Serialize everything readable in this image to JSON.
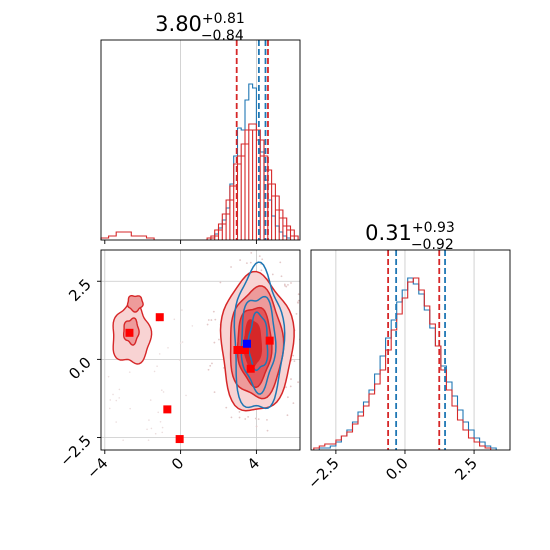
{
  "chart_data": [
    {
      "type": "histogram",
      "panel": "top-left",
      "title": {
        "base": "3.80",
        "sup": "+0.81",
        "sub": "−0.84"
      },
      "xlim": [
        -4.2,
        6.3
      ],
      "ylim": [
        0,
        1.0
      ],
      "grid": true,
      "quantile_lines": [
        {
          "series": "red",
          "x": [
            2.96,
            4.61
          ]
        },
        {
          "series": "blue",
          "x": [
            4.13,
            4.48
          ]
        }
      ],
      "series": [
        {
          "color": "#1f77b4",
          "bins": [
            [
              1.7,
              0.01
            ],
            [
              1.9,
              0.03
            ],
            [
              2.1,
              0.06
            ],
            [
              2.3,
              0.1
            ],
            [
              2.5,
              0.16
            ],
            [
              2.7,
              0.28
            ],
            [
              2.9,
              0.42
            ],
            [
              3.1,
              0.56
            ],
            [
              3.3,
              0.55
            ],
            [
              3.5,
              0.7
            ],
            [
              3.7,
              0.78
            ],
            [
              3.9,
              0.76
            ],
            [
              4.1,
              0.55
            ],
            [
              4.3,
              0.44
            ],
            [
              4.5,
              0.3
            ],
            [
              4.7,
              0.2
            ],
            [
              4.9,
              0.12
            ],
            [
              5.1,
              0.07
            ],
            [
              5.3,
              0.04
            ],
            [
              5.5,
              0.02
            ],
            [
              5.7,
              0.01
            ]
          ]
        },
        {
          "color": "#d62728",
          "bins": [
            [
              -4.0,
              0.01
            ],
            [
              -3.6,
              0.02
            ],
            [
              -3.2,
              0.04
            ],
            [
              -2.8,
              0.04
            ],
            [
              -2.4,
              0.02
            ],
            [
              -2.0,
              0.02
            ],
            [
              -1.6,
              0.01
            ],
            [
              1.6,
              0.01
            ],
            [
              1.8,
              0.02
            ],
            [
              2.0,
              0.05
            ],
            [
              2.2,
              0.08
            ],
            [
              2.4,
              0.13
            ],
            [
              2.6,
              0.2
            ],
            [
              2.8,
              0.27
            ],
            [
              3.0,
              0.38
            ],
            [
              3.2,
              0.42
            ],
            [
              3.4,
              0.48
            ],
            [
              3.6,
              0.55
            ],
            [
              3.8,
              0.58
            ],
            [
              4.0,
              0.55
            ],
            [
              4.2,
              0.5
            ],
            [
              4.4,
              0.42
            ],
            [
              4.6,
              0.35
            ],
            [
              4.8,
              0.28
            ],
            [
              5.0,
              0.22
            ],
            [
              5.2,
              0.15
            ],
            [
              5.4,
              0.11
            ],
            [
              5.6,
              0.07
            ],
            [
              5.8,
              0.05
            ],
            [
              6.0,
              0.02
            ]
          ]
        }
      ]
    },
    {
      "type": "contour",
      "panel": "bottom-left",
      "xlim": [
        -4.2,
        6.3
      ],
      "ylim": [
        -2.9,
        3.5
      ],
      "xticks": [
        -4,
        0,
        4
      ],
      "xtick_labels": [
        "−4",
        "0",
        "4"
      ],
      "yticks": [
        2.5,
        0.0,
        -2.5
      ],
      "ytick_labels": [
        "2.5",
        "0.0",
        "−2.5"
      ],
      "grid": true,
      "red_contours": [
        {
          "cx": 4.0,
          "cy": 0.5,
          "rx": 1.9,
          "ry": 2.2,
          "fill": "#f8d3d3"
        },
        {
          "cx": 4.0,
          "cy": 0.5,
          "rx": 1.4,
          "ry": 1.75,
          "fill": "#ee9b9b"
        },
        {
          "cx": 3.9,
          "cy": 0.45,
          "rx": 0.9,
          "ry": 1.25,
          "fill": "#e2565a"
        },
        {
          "cx": 3.8,
          "cy": 0.5,
          "rx": 0.45,
          "ry": 0.75,
          "fill": "#d62728"
        }
      ],
      "red_islands": [
        {
          "cx": -2.6,
          "cy": 0.8,
          "rx": 1.0,
          "ry": 0.95,
          "fill": "#f8d3d3"
        },
        {
          "cx": -2.6,
          "cy": 0.9,
          "rx": 0.4,
          "ry": 0.4,
          "fill": "#ee9b9b"
        },
        {
          "cx": -2.4,
          "cy": 1.8,
          "rx": 0.4,
          "ry": 0.25,
          "fill": "#ee9b9b"
        }
      ],
      "blue_contours": [
        {
          "cx": 4.1,
          "cy": 0.6,
          "rx": 1.3,
          "ry": 2.3
        },
        {
          "cx": 4.1,
          "cy": 0.55,
          "rx": 0.9,
          "ry": 1.5
        },
        {
          "cx": 4.1,
          "cy": 0.55,
          "rx": 0.5,
          "ry": 0.9
        }
      ],
      "red_markers": [
        [
          -1.1,
          1.35
        ],
        [
          -2.7,
          0.85
        ],
        [
          -0.7,
          -1.6
        ],
        [
          -0.05,
          -2.55
        ],
        [
          3.0,
          0.3
        ],
        [
          3.4,
          0.3
        ],
        [
          3.7,
          -0.3
        ],
        [
          4.7,
          0.6
        ]
      ],
      "blue_markers": [
        [
          3.5,
          0.5
        ]
      ]
    },
    {
      "type": "histogram",
      "panel": "bottom-right",
      "title": {
        "base": "0.31",
        "sup": "+0.93",
        "sub": "−0.92"
      },
      "xlim": [
        -3.4,
        3.8
      ],
      "ylim": [
        0,
        1.0
      ],
      "xticks": [
        -2.5,
        0.0,
        2.5
      ],
      "xtick_labels": [
        "−2.5",
        "0.0",
        "2.5"
      ],
      "grid": true,
      "quantile_lines": [
        {
          "series": "red",
          "x": [
            -0.61,
            1.24
          ]
        },
        {
          "series": "blue",
          "x": [
            -0.32,
            1.45
          ]
        }
      ],
      "series": [
        {
          "color": "#1f77b4",
          "bins": [
            [
              -3.0,
              0.01
            ],
            [
              -2.8,
              0.01
            ],
            [
              -2.6,
              0.02
            ],
            [
              -2.4,
              0.04
            ],
            [
              -2.2,
              0.07
            ],
            [
              -2.0,
              0.1
            ],
            [
              -1.8,
              0.14
            ],
            [
              -1.6,
              0.19
            ],
            [
              -1.4,
              0.24
            ],
            [
              -1.2,
              0.3
            ],
            [
              -1.0,
              0.38
            ],
            [
              -0.8,
              0.47
            ],
            [
              -0.6,
              0.56
            ],
            [
              -0.4,
              0.65
            ],
            [
              -0.2,
              0.74
            ],
            [
              0.0,
              0.8
            ],
            [
              0.2,
              0.86
            ],
            [
              0.4,
              0.83
            ],
            [
              0.6,
              0.78
            ],
            [
              0.8,
              0.7
            ],
            [
              1.0,
              0.61
            ],
            [
              1.2,
              0.52
            ],
            [
              1.4,
              0.42
            ],
            [
              1.6,
              0.34
            ],
            [
              1.8,
              0.27
            ],
            [
              2.0,
              0.2
            ],
            [
              2.2,
              0.14
            ],
            [
              2.4,
              0.1
            ],
            [
              2.6,
              0.06
            ],
            [
              2.8,
              0.04
            ],
            [
              3.0,
              0.02
            ],
            [
              3.2,
              0.01
            ]
          ]
        },
        {
          "color": "#d62728",
          "bins": [
            [
              -3.2,
              0.01
            ],
            [
              -3.0,
              0.02
            ],
            [
              -2.8,
              0.03
            ],
            [
              -2.6,
              0.03
            ],
            [
              -2.4,
              0.05
            ],
            [
              -2.2,
              0.07
            ],
            [
              -2.0,
              0.09
            ],
            [
              -1.8,
              0.13
            ],
            [
              -1.6,
              0.17
            ],
            [
              -1.4,
              0.22
            ],
            [
              -1.2,
              0.28
            ],
            [
              -1.0,
              0.33
            ],
            [
              -0.8,
              0.4
            ],
            [
              -0.6,
              0.5
            ],
            [
              -0.4,
              0.6
            ],
            [
              -0.2,
              0.68
            ],
            [
              0.0,
              0.76
            ],
            [
              0.2,
              0.84
            ],
            [
              0.4,
              0.86
            ],
            [
              0.6,
              0.8
            ],
            [
              0.8,
              0.72
            ],
            [
              1.0,
              0.63
            ],
            [
              1.2,
              0.52
            ],
            [
              1.4,
              0.4
            ],
            [
              1.6,
              0.3
            ],
            [
              1.8,
              0.22
            ],
            [
              2.0,
              0.15
            ],
            [
              2.2,
              0.1
            ],
            [
              2.4,
              0.06
            ],
            [
              2.6,
              0.04
            ],
            [
              2.8,
              0.02
            ],
            [
              3.0,
              0.01
            ]
          ]
        }
      ]
    }
  ]
}
